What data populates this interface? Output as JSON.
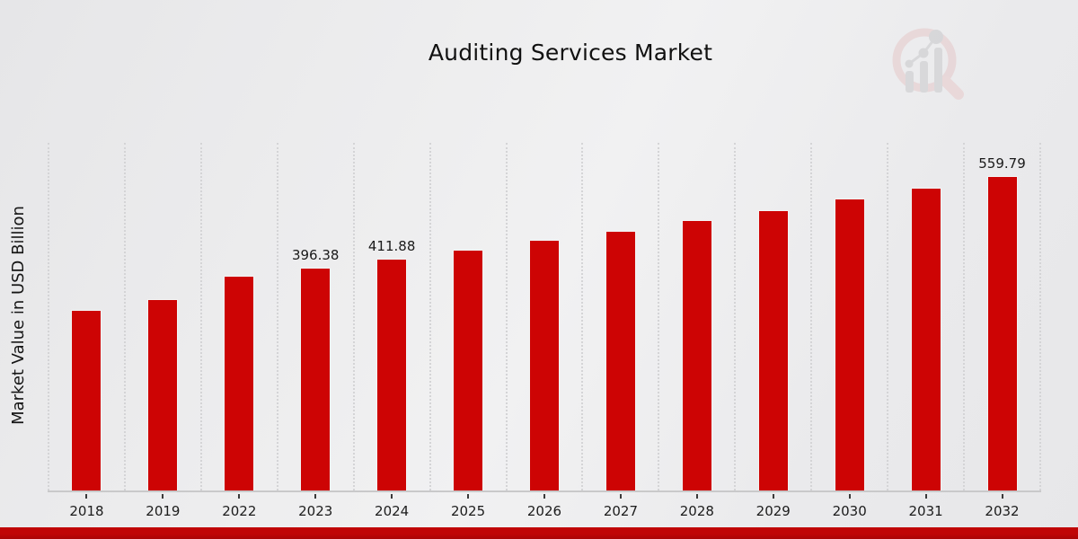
{
  "header": {
    "title": "Auditing Services Market"
  },
  "watermark": {
    "icon": "magnifier-bar-chart-logo"
  },
  "colors": {
    "bar": "#cd0404",
    "bar_edge": "#f3f3f3",
    "grid": "#d4d4d6",
    "axis": "#c9c9ca",
    "bottom_strip": "#c00506",
    "watermark_ring": "#e5c8c9",
    "watermark_gray": "#c9c9cc"
  },
  "chart_data": {
    "type": "bar",
    "title": "Auditing Services Market",
    "xlabel": "",
    "ylabel": "Market Value in USD Billion",
    "legend": "none",
    "grid": "vertical-dotted",
    "ylim": [
      0,
      620
    ],
    "categories": [
      "2018",
      "2019",
      "2022",
      "2023",
      "2024",
      "2025",
      "2026",
      "2027",
      "2028",
      "2029",
      "2030",
      "2031",
      "2032"
    ],
    "values": [
      320,
      340,
      381.5,
      396.38,
      411.88,
      428,
      444.8,
      462.2,
      480.2,
      499,
      518.5,
      538.8,
      559.79
    ],
    "value_labels": [
      "",
      "",
      "",
      "396.38",
      "411.88",
      "",
      "",
      "",
      "",
      "",
      "",
      "",
      "559.79"
    ],
    "labeled_points_note": "Only 2023, 2024 and 2032 carry visible data labels; other values estimated from bar heights"
  }
}
